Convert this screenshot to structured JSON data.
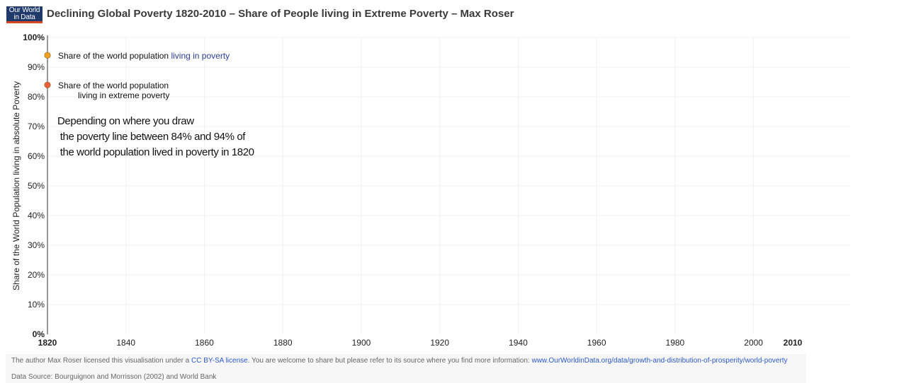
{
  "logo": {
    "line1": "Our World",
    "line2": "in Data"
  },
  "title": "Declining Global Poverty 1820-2010 – Share of People living in Extreme Poverty – Max Roser",
  "chart_data": {
    "type": "line",
    "title": "Declining Global Poverty 1820-2010 – Share of People living in Extreme Poverty – Max Roser",
    "ylabel": "Share of the World Population living in absolute Poverty",
    "xlabel": "",
    "xlim": [
      1820,
      2010
    ],
    "ylim": [
      0,
      100
    ],
    "x_ticks": [
      1820,
      1840,
      1860,
      1880,
      1900,
      1920,
      1940,
      1960,
      1980,
      2000,
      2010
    ],
    "y_ticks": [
      0,
      10,
      20,
      30,
      40,
      50,
      60,
      70,
      80,
      90,
      100
    ],
    "y_tick_labels": [
      "0%",
      "10%",
      "20%",
      "30%",
      "40%",
      "50%",
      "60%",
      "70%",
      "80%",
      "90%",
      "100%"
    ],
    "grid": true,
    "series": [
      {
        "name": "Share of the world population living in poverty",
        "color": "#f0a020",
        "points": [
          {
            "x": 1820,
            "y": 94
          }
        ]
      },
      {
        "name": "Share of the world population living in extreme poverty",
        "color": "#e8603c",
        "points": [
          {
            "x": 1820,
            "y": 84
          }
        ]
      }
    ],
    "legend": [
      {
        "series": 0,
        "lines": [
          [
            "Share of the world population ",
            "living in poverty"
          ]
        ]
      },
      {
        "series": 1,
        "lines": [
          [
            "Share of the world population",
            ""
          ],
          [
            "living in extreme poverty",
            ""
          ]
        ]
      }
    ],
    "annotation": [
      "Depending on where you draw",
      " the poverty line between 84% and 94% of",
      " the world population lived in poverty in 1820"
    ]
  },
  "footer": {
    "license_prefix": "The author Max Roser licensed this visualisation under a ",
    "license_link": "CC BY-SA license",
    "license_middle": ". You are welcome to share but please refer to its source where you find more information: ",
    "source_url": "www.OurWorldinData.org/data/growth-and-distribution-of-prosperity/world-poverty",
    "data_source": "Data Source: Bourguignon and Morrisson (2002) and World Bank"
  }
}
